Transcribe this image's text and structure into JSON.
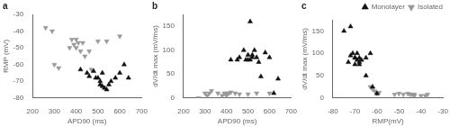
{
  "chart_data": [
    {
      "type": "scatter",
      "title": "a",
      "xlabel": "APD90 (ms)",
      "ylabel": "RMP (mV)",
      "series": [
        {
          "name": "Monolayer",
          "color": "#111111",
          "marker": "triangle_up",
          "x": [
            420,
            450,
            460,
            480,
            490,
            500,
            510,
            510,
            520,
            520,
            530,
            540,
            550,
            560,
            580,
            600,
            620,
            640
          ],
          "values": [
            -63,
            -65,
            -67,
            -64,
            -68,
            -68,
            -70,
            -72,
            -65,
            -73,
            -74,
            -75,
            -72,
            -70,
            -68,
            -65,
            -60,
            -68
          ]
        },
        {
          "name": "Isolated",
          "color": "#999999",
          "marker": "triangle_down",
          "x": [
            260,
            290,
            300,
            320,
            370,
            380,
            390,
            400,
            400,
            410,
            420,
            430,
            440,
            460,
            470,
            500,
            540,
            600
          ],
          "values": [
            -38,
            -40,
            -60,
            -62,
            -50,
            -45,
            -48,
            -45,
            -50,
            -47,
            -52,
            -47,
            -55,
            -52,
            -63,
            -46,
            -46,
            -43
          ]
        }
      ],
      "xlim": [
        200,
        700
      ],
      "ylim": [
        -80,
        -30
      ],
      "xticks": [
        200,
        300,
        400,
        500,
        600,
        700
      ],
      "yticks": [
        -80,
        -70,
        -60,
        -50,
        -40,
        -30
      ],
      "grid": false
    },
    {
      "type": "scatter",
      "title": "b",
      "xlabel": "APD90 (ms)",
      "ylabel": "dV/dt max (mV/ms)",
      "series": [
        {
          "name": "Monolayer",
          "color": "#111111",
          "marker": "triangle_up",
          "x": [
            420,
            450,
            460,
            480,
            490,
            500,
            500,
            510,
            510,
            520,
            520,
            530,
            540,
            550,
            560,
            580,
            600,
            620,
            640
          ],
          "values": [
            80,
            80,
            85,
            100,
            80,
            80,
            90,
            80,
            160,
            85,
            90,
            100,
            85,
            75,
            45,
            95,
            85,
            10,
            40
          ]
        },
        {
          "name": "Isolated",
          "color": "#999999",
          "marker": "triangle_down",
          "x": [
            270,
            300,
            310,
            320,
            330,
            360,
            380,
            390,
            400,
            400,
            410,
            420,
            440,
            460,
            500,
            540,
            600
          ],
          "values": [
            0,
            10,
            5,
            10,
            15,
            10,
            5,
            10,
            10,
            5,
            10,
            12,
            10,
            8,
            8,
            10,
            10
          ]
        }
      ],
      "xlim": [
        200,
        700
      ],
      "ylim": [
        0,
        175
      ],
      "xticks": [
        200,
        300,
        400,
        500,
        600,
        700
      ],
      "yticks": [
        0,
        50,
        100,
        150
      ],
      "grid": false
    },
    {
      "type": "scatter",
      "title": "c",
      "xlabel": "RMP(mV)",
      "ylabel": "dV/dt max (mV/ms)",
      "series": [
        {
          "name": "Monolayer",
          "color": "#111111",
          "marker": "triangle_up",
          "x": [
            -75,
            -73,
            -72,
            -72,
            -71,
            -70,
            -70,
            -70,
            -69,
            -69,
            -68,
            -68,
            -68,
            -67,
            -65,
            -65,
            -63,
            -62,
            -60
          ],
          "values": [
            150,
            80,
            95,
            160,
            100,
            90,
            75,
            90,
            85,
            100,
            80,
            75,
            90,
            85,
            90,
            50,
            100,
            25,
            10
          ]
        },
        {
          "name": "Isolated",
          "color": "#999999",
          "marker": "triangle_down",
          "x": [
            -63,
            -62,
            -61,
            -60,
            -59,
            -52,
            -50,
            -48,
            -46,
            -45,
            -44,
            -43,
            -43,
            -40,
            -38,
            -37
          ],
          "values": [
            25,
            20,
            15,
            10,
            12,
            8,
            10,
            8,
            10,
            8,
            8,
            8,
            5,
            5,
            5,
            8
          ]
        }
      ],
      "xlim": [
        -80,
        -30
      ],
      "ylim": [
        0,
        175
      ],
      "xticks": [
        -80,
        -70,
        -60,
        -50,
        -40,
        -30
      ],
      "yticks": [
        0,
        50,
        100,
        150
      ],
      "grid": false,
      "legend": "upper right"
    }
  ]
}
